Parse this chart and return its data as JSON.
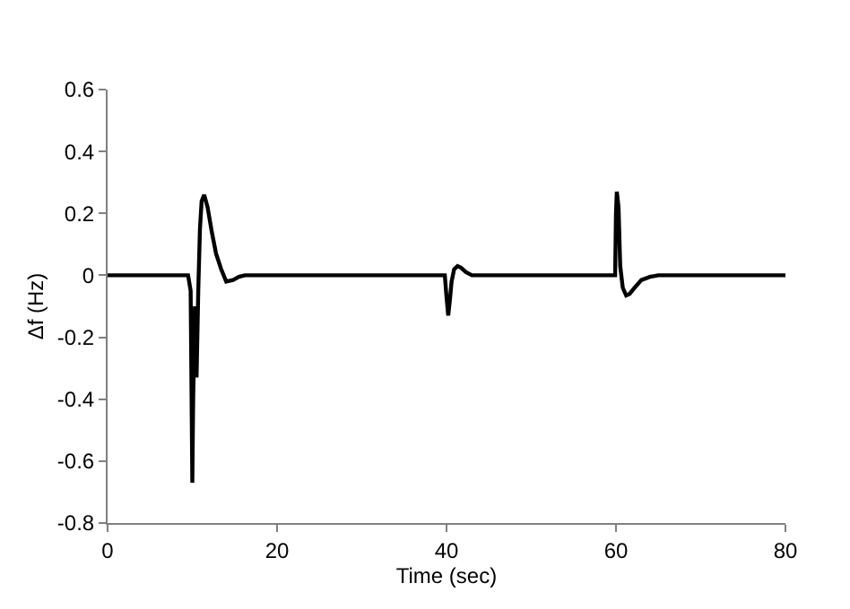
{
  "chart_data": {
    "type": "line",
    "xlabel": "Time (sec)",
    "ylabel": "Δf (Hz)",
    "x": [
      0,
      9.5,
      9.8,
      10.0,
      10.1,
      10.3,
      10.5,
      10.7,
      10.9,
      11.1,
      11.4,
      11.8,
      12.3,
      12.8,
      13.4,
      14.0,
      14.8,
      15.5,
      16.2,
      39.8,
      40.0,
      40.2,
      40.4,
      40.6,
      40.9,
      41.3,
      41.7,
      42.3,
      43.0,
      43.8,
      59.9,
      60.0,
      60.1,
      60.3,
      60.5,
      60.8,
      61.2,
      61.6,
      62.2,
      63.0,
      64.0,
      65.0,
      80
    ],
    "series": [
      {
        "color": "#000000",
        "values": [
          0,
          0,
          -0.05,
          -0.67,
          -0.4,
          -0.1,
          -0.33,
          -0.05,
          0.15,
          0.24,
          0.26,
          0.22,
          0.14,
          0.07,
          0.02,
          -0.02,
          -0.015,
          -0.005,
          0,
          0,
          -0.07,
          -0.13,
          -0.08,
          -0.02,
          0.02,
          0.03,
          0.025,
          0.01,
          0,
          0,
          0,
          0.2,
          0.27,
          0.22,
          0.03,
          -0.04,
          -0.065,
          -0.06,
          -0.04,
          -0.015,
          -0.005,
          0,
          0
        ]
      }
    ],
    "xlim": [
      0,
      80
    ],
    "xticks": [
      0,
      20,
      40,
      60,
      80
    ],
    "ylim": [
      -0.8,
      0.6
    ],
    "yticks": [
      -0.8,
      -0.6,
      -0.4,
      -0.2,
      0,
      0.2,
      0.4,
      0.6
    ],
    "legend": false,
    "marker": "none",
    "line_style": "solid"
  }
}
